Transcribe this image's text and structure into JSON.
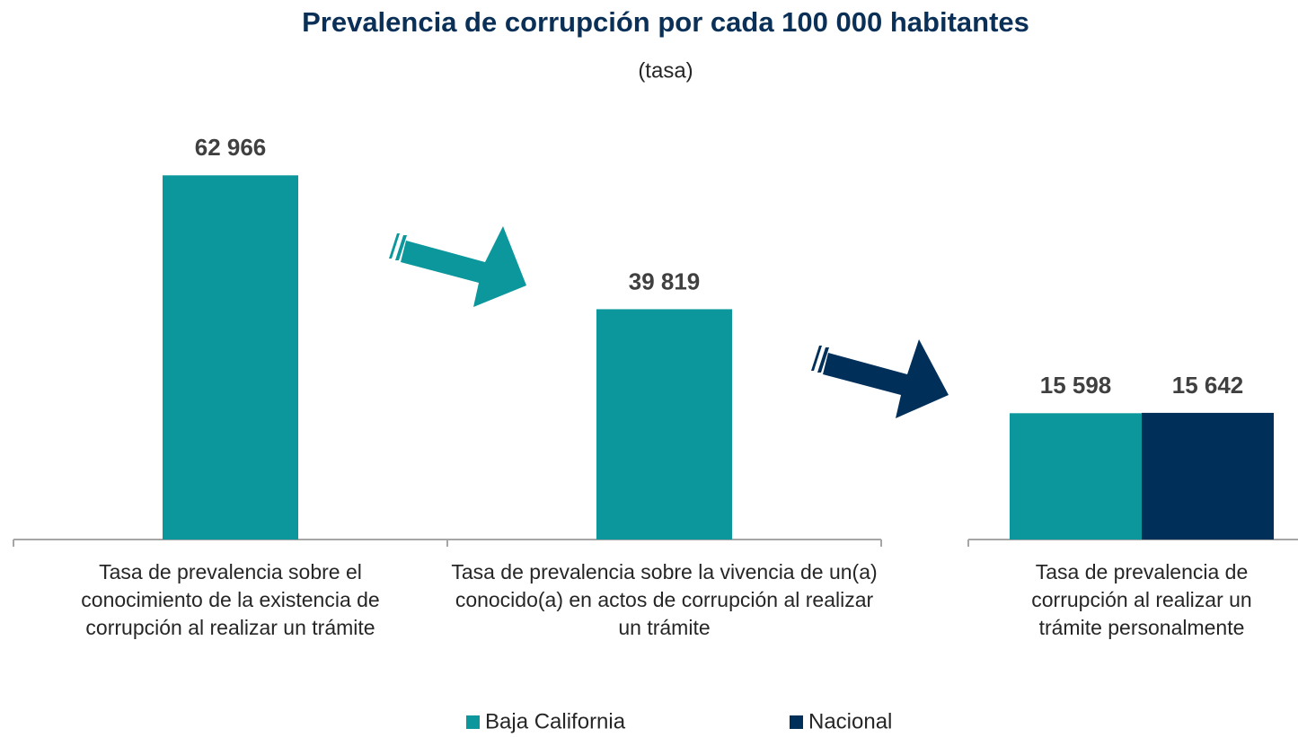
{
  "chart_data": [
    {
      "type": "bar",
      "title": "Prevalencia de corrupción por cada 100 000 habitantes",
      "subtitle": "(tasa)",
      "categories": [
        "Tasa de prevalencia sobre el conocimiento de la existencia de corrupción al realizar un trámite",
        "Tasa de prevalencia sobre la vivencia de un(a) conocido(a) en actos de corrupción al realizar un trámite"
      ],
      "values": [
        62966,
        39819
      ],
      "value_labels": [
        "62 966",
        "39 819"
      ],
      "color": "#0b979b",
      "ylim": [
        0,
        70000
      ]
    },
    {
      "type": "bar",
      "categories": [
        "Tasa de prevalencia de corrupción al realizar un trámite personalmente"
      ],
      "series": [
        {
          "name": "Baja California",
          "color": "#0b979b",
          "values": [
            15598
          ],
          "value_labels": [
            "15 598"
          ]
        },
        {
          "name": "Nacional",
          "color": "#00305a",
          "values": [
            15642
          ],
          "value_labels": [
            "15 642"
          ]
        }
      ],
      "ylim": [
        0,
        50000
      ],
      "legend": "bottom"
    }
  ]
}
